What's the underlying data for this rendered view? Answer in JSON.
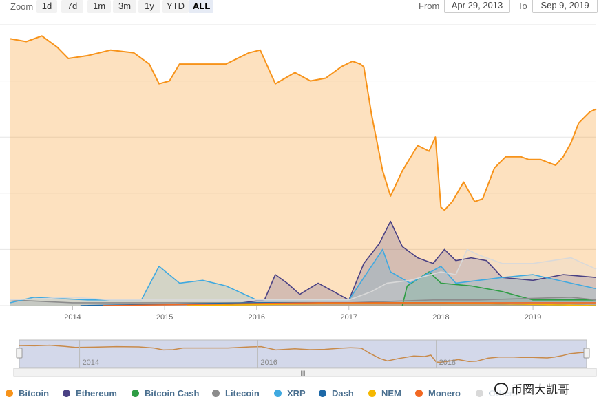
{
  "toolbar": {
    "zoom_label": "Zoom",
    "zoom_buttons": [
      "1d",
      "7d",
      "1m",
      "3m",
      "1y",
      "YTD",
      "ALL"
    ],
    "active_zoom": "ALL",
    "from_label": "From",
    "from_value": "Apr 29, 2013",
    "to_label": "To",
    "to_value": "Sep 9, 2019"
  },
  "watermark": {
    "text": "币圈大凯哥"
  },
  "chart_data": {
    "type": "area",
    "stacking": "percent",
    "x_start": "2013-04-29",
    "x_end": "2019-09-09",
    "x_ticks": [
      "2014",
      "2015",
      "2016",
      "2017",
      "2018",
      "2019"
    ],
    "ylim": [
      0,
      100
    ],
    "grid": true,
    "legend_position": "bottom",
    "navigator_ticks": [
      "2014",
      "2016",
      "2018"
    ],
    "series": [
      {
        "name": "Bitcoin",
        "color": "#f7931a",
        "points": [
          [
            "2013-04-29",
            95
          ],
          [
            "2013-07-01",
            94
          ],
          [
            "2013-09-01",
            96
          ],
          [
            "2013-11-01",
            92
          ],
          [
            "2013-12-15",
            88
          ],
          [
            "2014-03-01",
            89
          ],
          [
            "2014-06-01",
            91
          ],
          [
            "2014-09-01",
            90
          ],
          [
            "2014-11-01",
            86
          ],
          [
            "2014-12-10",
            79
          ],
          [
            "2015-01-20",
            80
          ],
          [
            "2015-03-01",
            86
          ],
          [
            "2015-06-01",
            86
          ],
          [
            "2015-09-01",
            86
          ],
          [
            "2015-12-01",
            90
          ],
          [
            "2016-01-15",
            91
          ],
          [
            "2016-03-15",
            79
          ],
          [
            "2016-06-01",
            83
          ],
          [
            "2016-08-01",
            80
          ],
          [
            "2016-10-01",
            81
          ],
          [
            "2016-12-01",
            85
          ],
          [
            "2017-01-15",
            87
          ],
          [
            "2017-02-15",
            86
          ],
          [
            "2017-03-01",
            85
          ],
          [
            "2017-04-01",
            68
          ],
          [
            "2017-05-15",
            48
          ],
          [
            "2017-06-15",
            39
          ],
          [
            "2017-08-01",
            48
          ],
          [
            "2017-10-01",
            57
          ],
          [
            "2017-11-15",
            55
          ],
          [
            "2017-12-10",
            60
          ],
          [
            "2018-01-01",
            35
          ],
          [
            "2018-01-15",
            34
          ],
          [
            "2018-02-15",
            37
          ],
          [
            "2018-04-01",
            44
          ],
          [
            "2018-05-15",
            37
          ],
          [
            "2018-06-15",
            38
          ],
          [
            "2018-08-01",
            49
          ],
          [
            "2018-09-15",
            53
          ],
          [
            "2018-11-15",
            53
          ],
          [
            "2018-12-15",
            52
          ],
          [
            "2019-02-01",
            52
          ],
          [
            "2019-03-01",
            51
          ],
          [
            "2019-04-01",
            50
          ],
          [
            "2019-05-01",
            53
          ],
          [
            "2019-06-01",
            58
          ],
          [
            "2019-07-01",
            65
          ],
          [
            "2019-08-15",
            69
          ],
          [
            "2019-09-09",
            70
          ]
        ]
      },
      {
        "name": "Ethereum",
        "color": "#4a4184",
        "points": [
          [
            "2015-08-07",
            0
          ],
          [
            "2016-02-01",
            2
          ],
          [
            "2016-03-15",
            11
          ],
          [
            "2016-05-01",
            8
          ],
          [
            "2016-06-20",
            4
          ],
          [
            "2016-09-01",
            8
          ],
          [
            "2016-11-01",
            5
          ],
          [
            "2017-01-01",
            2
          ],
          [
            "2017-03-01",
            15
          ],
          [
            "2017-05-01",
            22
          ],
          [
            "2017-06-15",
            30
          ],
          [
            "2017-08-01",
            21
          ],
          [
            "2017-10-01",
            17
          ],
          [
            "2017-12-01",
            15
          ],
          [
            "2018-01-15",
            20
          ],
          [
            "2018-03-01",
            16
          ],
          [
            "2018-05-01",
            17
          ],
          [
            "2018-07-01",
            16
          ],
          [
            "2018-09-01",
            10
          ],
          [
            "2019-01-01",
            9
          ],
          [
            "2019-05-01",
            11
          ],
          [
            "2019-09-09",
            10
          ]
        ]
      },
      {
        "name": "Bitcoin Cash",
        "color": "#2e9d44",
        "points": [
          [
            "2017-08-01",
            0
          ],
          [
            "2017-08-20",
            7
          ],
          [
            "2017-11-15",
            12
          ],
          [
            "2018-01-01",
            8
          ],
          [
            "2018-05-01",
            7
          ],
          [
            "2018-09-01",
            5
          ],
          [
            "2019-01-01",
            2
          ],
          [
            "2019-09-09",
            2
          ]
        ]
      },
      {
        "name": "Litecoin",
        "color": "#8c8c8c",
        "points": [
          [
            "2013-04-29",
            2
          ],
          [
            "2014-01-01",
            1
          ],
          [
            "2015-01-01",
            1
          ],
          [
            "2016-01-01",
            1
          ],
          [
            "2017-01-01",
            1
          ],
          [
            "2017-12-01",
            2
          ],
          [
            "2018-06-01",
            2
          ],
          [
            "2019-06-01",
            3
          ],
          [
            "2019-09-09",
            2
          ]
        ]
      },
      {
        "name": "XRP",
        "color": "#3fa9e0",
        "points": [
          [
            "2013-04-29",
            1
          ],
          [
            "2013-08-01",
            3
          ],
          [
            "2014-03-01",
            2
          ],
          [
            "2014-10-01",
            2
          ],
          [
            "2014-12-10",
            14
          ],
          [
            "2015-03-01",
            8
          ],
          [
            "2015-06-01",
            9
          ],
          [
            "2015-09-01",
            7
          ],
          [
            "2016-01-01",
            2
          ],
          [
            "2016-06-01",
            2
          ],
          [
            "2017-01-01",
            2
          ],
          [
            "2017-05-15",
            20
          ],
          [
            "2017-06-15",
            12
          ],
          [
            "2017-09-01",
            8
          ],
          [
            "2018-01-01",
            14
          ],
          [
            "2018-03-01",
            8
          ],
          [
            "2018-09-01",
            10
          ],
          [
            "2019-01-01",
            11
          ],
          [
            "2019-09-09",
            6
          ]
        ]
      },
      {
        "name": "Dash",
        "color": "#1d68a7",
        "points": [
          [
            "2014-02-01",
            0
          ],
          [
            "2016-01-01",
            1
          ],
          [
            "2017-01-01",
            1
          ],
          [
            "2018-01-01",
            1
          ],
          [
            "2019-09-09",
            0
          ]
        ]
      },
      {
        "name": "NEM",
        "color": "#f5b800",
        "points": [
          [
            "2015-04-01",
            0
          ],
          [
            "2017-06-01",
            1
          ],
          [
            "2018-01-01",
            1
          ],
          [
            "2019-09-09",
            0
          ]
        ]
      },
      {
        "name": "Monero",
        "color": "#f26822",
        "points": [
          [
            "2014-05-01",
            0
          ],
          [
            "2016-09-01",
            1
          ],
          [
            "2018-01-01",
            1
          ],
          [
            "2019-09-09",
            1
          ]
        ]
      },
      {
        "name": "Others",
        "color": "#d9d9d9",
        "points": [
          [
            "2013-04-29",
            2
          ],
          [
            "2014-01-01",
            3
          ],
          [
            "2014-06-01",
            2
          ],
          [
            "2015-01-01",
            2
          ],
          [
            "2016-01-01",
            2
          ],
          [
            "2017-01-01",
            2
          ],
          [
            "2017-04-01",
            5
          ],
          [
            "2017-06-01",
            8
          ],
          [
            "2017-09-01",
            9
          ],
          [
            "2018-01-01",
            12
          ],
          [
            "2018-03-01",
            11
          ],
          [
            "2018-04-15",
            20
          ],
          [
            "2018-06-01",
            18
          ],
          [
            "2018-09-01",
            15
          ],
          [
            "2019-01-01",
            15
          ],
          [
            "2019-06-01",
            17
          ],
          [
            "2019-09-09",
            13
          ]
        ]
      }
    ]
  }
}
